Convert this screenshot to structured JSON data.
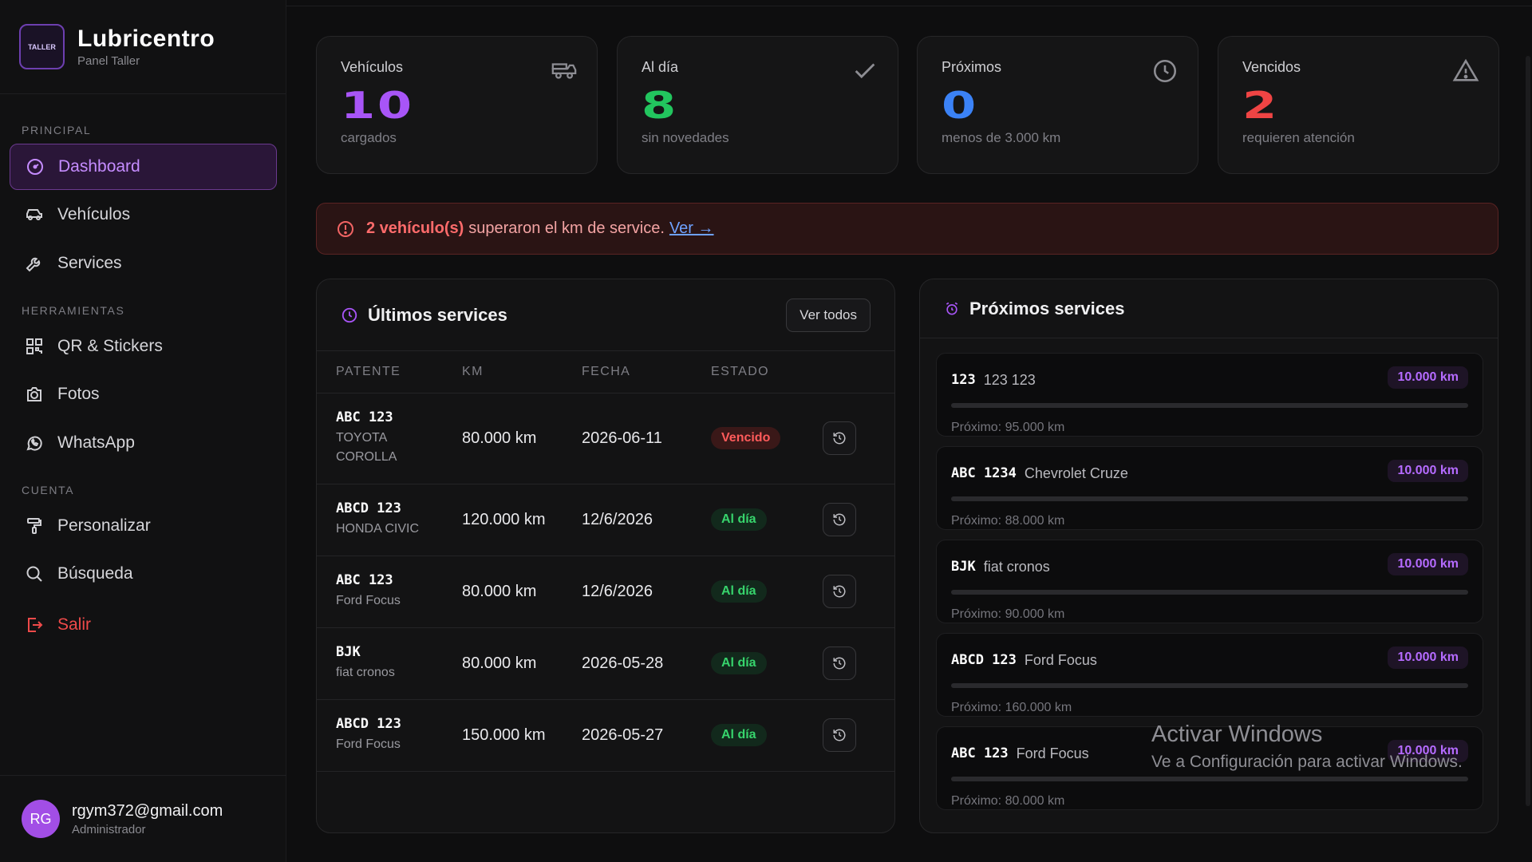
{
  "brand": {
    "title": "Lubricentro",
    "subtitle": "Panel Taller",
    "logo_text": "TALLER"
  },
  "sidebar": {
    "sections": {
      "principal": "PRINCIPAL",
      "herramientas": "HERRAMIENTAS",
      "cuenta": "CUENTA"
    },
    "items": [
      {
        "label": "Dashboard",
        "icon": "dashboard-icon"
      },
      {
        "label": "Vehículos",
        "icon": "car-icon"
      },
      {
        "label": "Services",
        "icon": "wrench-icon"
      },
      {
        "label": "QR & Stickers",
        "icon": "qr-icon"
      },
      {
        "label": "Fotos",
        "icon": "camera-icon"
      },
      {
        "label": "WhatsApp",
        "icon": "whatsapp-icon"
      },
      {
        "label": "Personalizar",
        "icon": "paint-roller-icon"
      },
      {
        "label": "Búsqueda",
        "icon": "search-icon"
      },
      {
        "label": "Salir",
        "icon": "logout-icon"
      }
    ],
    "user": {
      "initials": "RG",
      "email": "rgym372@gmail.com",
      "role": "Administrador"
    }
  },
  "stats": [
    {
      "label": "Vehículos",
      "value": "10",
      "sub": "cargados",
      "color": "#a855f7",
      "icon": "car-icon"
    },
    {
      "label": "Al día",
      "value": "8",
      "sub": "sin novedades",
      "color": "#22c55e",
      "icon": "check-icon"
    },
    {
      "label": "Próximos",
      "value": "0",
      "sub": "menos de 3.000 km",
      "color": "#3b82f6",
      "icon": "clock-icon"
    },
    {
      "label": "Vencidos",
      "value": "2",
      "sub": "requieren atención",
      "color": "#ef4444",
      "icon": "warning-icon"
    }
  ],
  "alert": {
    "count_text": "2 vehículo(s)",
    "message": "superaron el km de service.",
    "link": "Ver →"
  },
  "ultimos": {
    "title": "Últimos services",
    "button": "Ver todos",
    "columns": [
      "PATENTE",
      "KM",
      "FECHA",
      "ESTADO"
    ],
    "rows": [
      {
        "plate": "ABC 123",
        "model_line1": "TOYOTA",
        "model_line2": "COROLLA",
        "km": "80.000 km",
        "date": "2026-06-11",
        "status": "Vencido",
        "status_type": "red"
      },
      {
        "plate": "ABCD 123",
        "model_line1": "HONDA CIVIC",
        "model_line2": "",
        "km": "120.000 km",
        "date": "12/6/2026",
        "status": "Al día",
        "status_type": "green"
      },
      {
        "plate": "ABC 123",
        "model_line1": "Ford Focus",
        "model_line2": "",
        "km": "80.000 km",
        "date": "12/6/2026",
        "status": "Al día",
        "status_type": "green"
      },
      {
        "plate": "BJK",
        "model_line1": "fiat cronos",
        "model_line2": "",
        "km": "80.000 km",
        "date": "2026-05-28",
        "status": "Al día",
        "status_type": "green"
      },
      {
        "plate": "ABCD 123",
        "model_line1": "Ford Focus",
        "model_line2": "",
        "km": "150.000 km",
        "date": "2026-05-27",
        "status": "Al día",
        "status_type": "green"
      }
    ]
  },
  "proximos": {
    "title": "Próximos services",
    "items": [
      {
        "plate": "123",
        "model": "123 123",
        "km": "10.000 km",
        "next": "Próximo: 95.000 km",
        "progress": 0
      },
      {
        "plate": "ABC 1234",
        "model": "Chevrolet Cruze",
        "km": "10.000 km",
        "next": "Próximo: 88.000 km",
        "progress": 0
      },
      {
        "plate": "BJK",
        "model": "fiat cronos",
        "km": "10.000 km",
        "next": "Próximo: 90.000 km",
        "progress": 0
      },
      {
        "plate": "ABCD 123",
        "model": "Ford Focus",
        "km": "10.000 km",
        "next": "Próximo: 160.000 km",
        "progress": 0
      },
      {
        "plate": "ABC 123",
        "model": "Ford Focus",
        "km": "10.000 km",
        "next": "Próximo: 80.000 km",
        "progress": 0
      }
    ]
  },
  "watermark": {
    "line1": "Activar Windows",
    "line2": "Ve a Configuración para activar Windows."
  }
}
